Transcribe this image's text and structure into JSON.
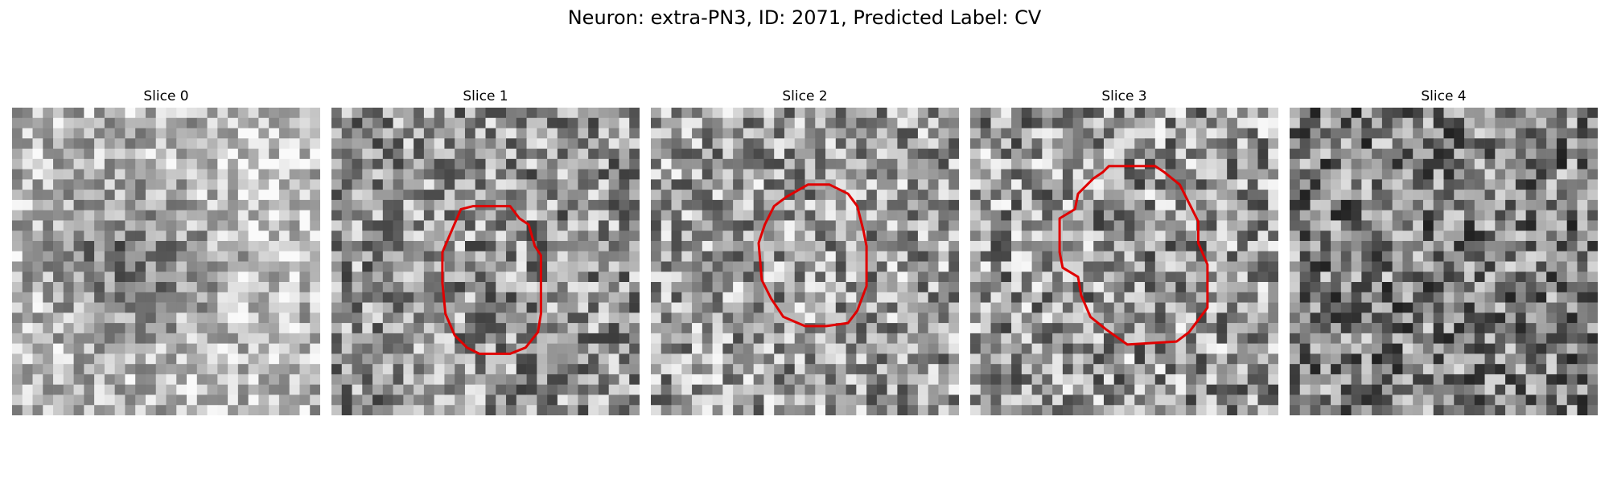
{
  "figure": {
    "title": "Neuron: extra-PN3, ID: 2071, Predicted Label: CV"
  },
  "panels": [
    {
      "title": "Slice 0",
      "has_contour": false,
      "brightness": 0.72,
      "contrast": 0.55
    },
    {
      "title": "Slice 1",
      "has_contour": true,
      "brightness": 0.58,
      "contrast": 0.7
    },
    {
      "title": "Slice 2",
      "has_contour": true,
      "brightness": 0.62,
      "contrast": 0.7
    },
    {
      "title": "Slice 3",
      "has_contour": true,
      "brightness": 0.6,
      "contrast": 0.75
    },
    {
      "title": "Slice 4",
      "has_contour": false,
      "brightness": 0.5,
      "contrast": 0.75
    }
  ],
  "image": {
    "colormap": "grayscale",
    "grid_size": 30,
    "contour_color": "#e00000"
  }
}
